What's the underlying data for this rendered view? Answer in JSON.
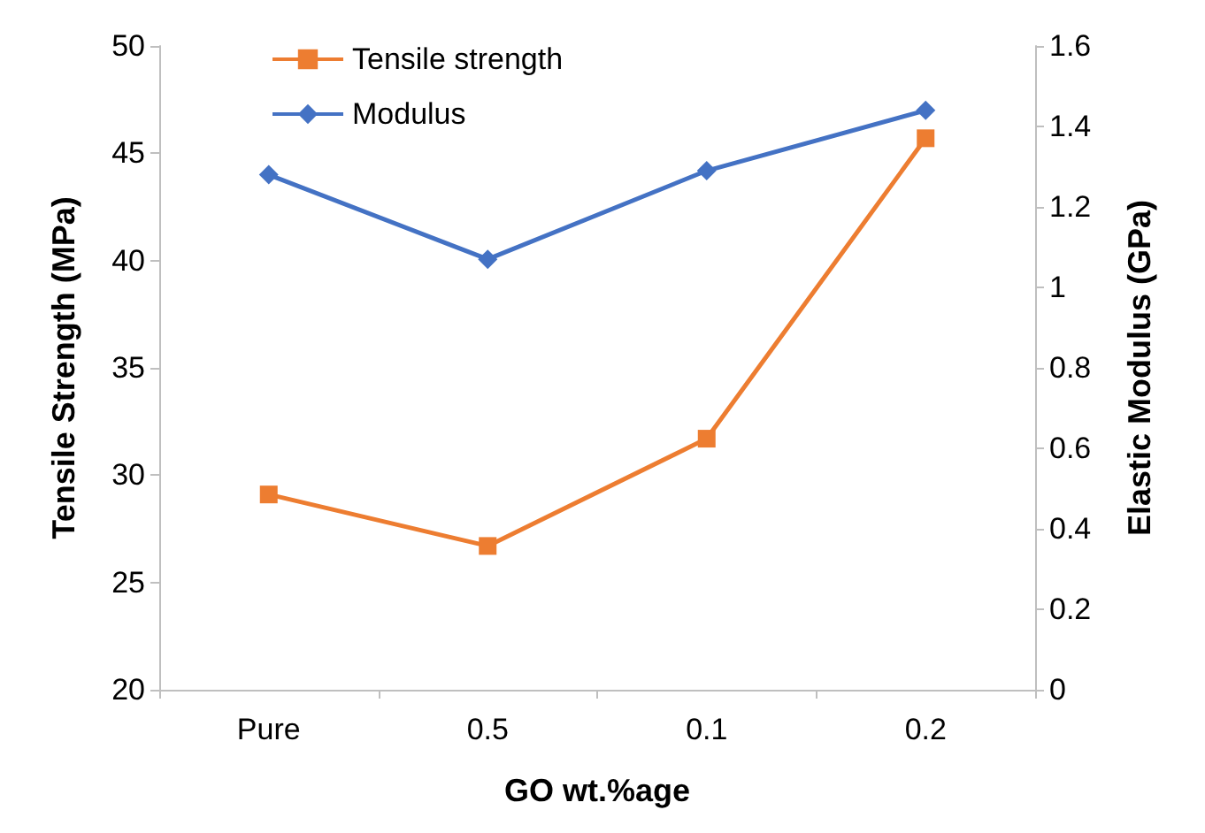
{
  "chart_data": {
    "type": "line",
    "xlabel": "GO wt.%age",
    "ylabel": "Tensile Strength (MPa)",
    "y2label": "Elastic Modulus (GPa)",
    "categories": [
      "Pure",
      "0.5",
      "0.1",
      "0.2"
    ],
    "series": [
      {
        "name": "Tensile strength",
        "color": "#ed7d31",
        "marker": "square",
        "values": [
          29.1,
          26.7,
          31.7,
          45.7
        ]
      },
      {
        "name": "Modulus",
        "color": "#4472c4",
        "marker": "diamond",
        "axis": "y2",
        "values": [
          1.28,
          1.07,
          1.29,
          1.44
        ]
      }
    ],
    "ylim": [
      20,
      50
    ],
    "yticks": [
      20,
      25,
      30,
      35,
      40,
      45,
      50
    ],
    "y2lim": [
      0,
      1.6
    ],
    "y2ticks": [
      0,
      0.2,
      0.4,
      0.6,
      0.8,
      1,
      1.2,
      1.4,
      1.6
    ],
    "grid": false,
    "legend": "top left"
  }
}
